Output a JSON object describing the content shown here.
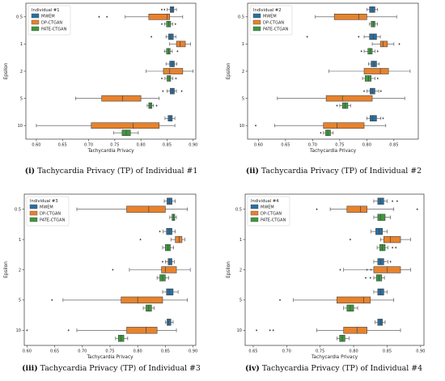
{
  "chart_data": [
    {
      "type": "box",
      "orientation": "horizontal",
      "caption_number": "(i)",
      "caption_text": "Tachycardia Privacy (TP) of Individual #1",
      "legend_title": "Individual #1",
      "xlabel": "Tachycardia Privacy",
      "ylabel": "Epsilon",
      "categories": [
        "0.5",
        "1",
        "2",
        "5",
        "10"
      ],
      "xlim": [
        0.58,
        0.905
      ],
      "xticks": [
        0.6,
        0.65,
        0.7,
        0.75,
        0.8,
        0.85,
        0.9
      ],
      "xtick_labels": [
        "0.60",
        "0.65",
        "0.70",
        "0.75",
        "0.80",
        "0.85",
        "0.90"
      ],
      "legend_position": "top-left",
      "series": [
        {
          "name": "MWEM",
          "color": "#2b6e9e",
          "boxes": [
            {
              "min": 0.85,
              "q1": 0.856,
              "median": 0.86,
              "q3": 0.863,
              "max": 0.868,
              "outliers": [
                0.84,
                0.845
              ]
            },
            {
              "min": 0.848,
              "q1": 0.853,
              "median": 0.857,
              "q3": 0.862,
              "max": 0.867,
              "outliers": [
                0.82
              ]
            },
            {
              "min": 0.848,
              "q1": 0.855,
              "median": 0.86,
              "q3": 0.864,
              "max": 0.869,
              "outliers": []
            },
            {
              "min": 0.85,
              "q1": 0.856,
              "median": 0.86,
              "q3": 0.864,
              "max": 0.868,
              "outliers": [
                0.842,
                0.878
              ]
            },
            {
              "min": 0.846,
              "q1": 0.852,
              "median": 0.856,
              "q3": 0.86,
              "max": 0.865,
              "outliers": []
            }
          ]
        },
        {
          "name": "DP-CTGAN",
          "color": "#e8822c",
          "boxes": [
            {
              "min": 0.77,
              "q1": 0.815,
              "median": 0.85,
              "q3": 0.855,
              "max": 0.88,
              "outliers": [
                0.72,
                0.735
              ]
            },
            {
              "min": 0.855,
              "q1": 0.868,
              "median": 0.875,
              "q3": 0.885,
              "max": 0.895,
              "outliers": []
            },
            {
              "min": 0.81,
              "q1": 0.843,
              "median": 0.855,
              "q3": 0.88,
              "max": 0.9,
              "outliers": []
            },
            {
              "min": 0.675,
              "q1": 0.725,
              "median": 0.765,
              "q3": 0.8,
              "max": 0.835,
              "outliers": []
            },
            {
              "min": 0.6,
              "q1": 0.705,
              "median": 0.785,
              "q3": 0.835,
              "max": 0.865,
              "outliers": []
            }
          ]
        },
        {
          "name": "PATE-CTGAN",
          "color": "#3c9a3c",
          "boxes": [
            {
              "min": 0.845,
              "q1": 0.849,
              "median": 0.853,
              "q3": 0.857,
              "max": 0.861,
              "outliers": [
                0.84,
                0.866
              ]
            },
            {
              "min": 0.845,
              "q1": 0.849,
              "median": 0.853,
              "q3": 0.856,
              "max": 0.86,
              "outliers": [
                0.87
              ]
            },
            {
              "min": 0.846,
              "q1": 0.85,
              "median": 0.854,
              "q3": 0.857,
              "max": 0.861,
              "outliers": [
                0.84,
                0.867
              ]
            },
            {
              "min": 0.812,
              "q1": 0.815,
              "median": 0.818,
              "q3": 0.821,
              "max": 0.824,
              "outliers": [
                0.83
              ]
            },
            {
              "min": 0.748,
              "q1": 0.764,
              "median": 0.772,
              "q3": 0.78,
              "max": 0.795,
              "outliers": []
            }
          ]
        }
      ]
    },
    {
      "type": "box",
      "orientation": "horizontal",
      "caption_number": "(ii)",
      "caption_text": "Tachycardia Privacy (TP) of Individual #2",
      "legend_title": "Individual #2",
      "xlabel": "Tachycardia Privacy",
      "ylabel": "Epsilon",
      "categories": [
        "0.5",
        "1",
        "2",
        "5",
        "10"
      ],
      "xlim": [
        0.58,
        0.895
      ],
      "xticks": [
        0.6,
        0.65,
        0.7,
        0.75,
        0.8,
        0.85
      ],
      "xtick_labels": [
        "0.60",
        "0.65",
        "0.70",
        "0.75",
        "0.80",
        "0.85"
      ],
      "legend_position": "top-left",
      "series": [
        {
          "name": "MWEM",
          "color": "#2b6e9e",
          "boxes": [
            {
              "min": 0.8,
              "q1": 0.805,
              "median": 0.81,
              "q3": 0.815,
              "max": 0.82,
              "outliers": []
            },
            {
              "min": 0.795,
              "q1": 0.805,
              "median": 0.812,
              "q3": 0.818,
              "max": 0.825,
              "outliers": [
                0.69,
                0.785
              ]
            },
            {
              "min": 0.803,
              "q1": 0.808,
              "median": 0.813,
              "q3": 0.818,
              "max": 0.823,
              "outliers": []
            },
            {
              "min": 0.8,
              "q1": 0.806,
              "median": 0.81,
              "q3": 0.815,
              "max": 0.822,
              "outliers": [
                0.795,
                0.826
              ]
            },
            {
              "min": 0.8,
              "q1": 0.806,
              "median": 0.811,
              "q3": 0.818,
              "max": 0.826,
              "outliers": [
                0.83
              ]
            }
          ]
        },
        {
          "name": "DP-CTGAN",
          "color": "#e8822c",
          "boxes": [
            {
              "min": 0.705,
              "q1": 0.74,
              "median": 0.785,
              "q3": 0.8,
              "max": 0.855,
              "outliers": []
            },
            {
              "min": 0.81,
              "q1": 0.825,
              "median": 0.83,
              "q3": 0.838,
              "max": 0.85,
              "outliers": [
                0.86
              ]
            },
            {
              "min": 0.73,
              "q1": 0.795,
              "median": 0.825,
              "q3": 0.84,
              "max": 0.88,
              "outliers": []
            },
            {
              "min": 0.635,
              "q1": 0.725,
              "median": 0.755,
              "q3": 0.81,
              "max": 0.87,
              "outliers": []
            },
            {
              "min": 0.63,
              "q1": 0.72,
              "median": 0.745,
              "q3": 0.795,
              "max": 0.835,
              "outliers": [
                0.595
              ]
            }
          ]
        },
        {
          "name": "PATE-CTGAN",
          "color": "#3c9a3c",
          "boxes": [
            {
              "min": 0.805,
              "q1": 0.808,
              "median": 0.812,
              "q3": 0.815,
              "max": 0.82,
              "outliers": []
            },
            {
              "min": 0.795,
              "q1": 0.802,
              "median": 0.806,
              "q3": 0.81,
              "max": 0.815,
              "outliers": [
                0.79,
                0.82
              ]
            },
            {
              "min": 0.792,
              "q1": 0.797,
              "median": 0.803,
              "q3": 0.808,
              "max": 0.815,
              "outliers": [
                0.82
              ]
            },
            {
              "min": 0.75,
              "q1": 0.755,
              "median": 0.76,
              "q3": 0.765,
              "max": 0.77,
              "outliers": [
                0.745
              ]
            },
            {
              "min": 0.72,
              "q1": 0.724,
              "median": 0.728,
              "q3": 0.733,
              "max": 0.738,
              "outliers": [
                0.715
              ]
            }
          ]
        }
      ]
    },
    {
      "type": "box",
      "orientation": "horizontal",
      "caption_number": "(iii)",
      "caption_text": "Tachycardia Privacy (TP) of Individual #3",
      "legend_title": "Individual #3",
      "xlabel": "Tachycardia Privacy",
      "ylabel": "Epsilon",
      "categories": [
        "0.5",
        "1",
        "2",
        "5",
        "10"
      ],
      "xlim": [
        0.595,
        0.905
      ],
      "xticks": [
        0.6,
        0.65,
        0.7,
        0.75,
        0.8,
        0.85,
        0.9
      ],
      "xtick_labels": [
        "0.60",
        "0.65",
        "0.70",
        "0.75",
        "0.80",
        "0.85",
        "0.90"
      ],
      "legend_position": "top-left",
      "series": [
        {
          "name": "MWEM",
          "color": "#2b6e9e",
          "boxes": [
            {
              "min": 0.848,
              "q1": 0.853,
              "median": 0.857,
              "q3": 0.862,
              "max": 0.868,
              "outliers": []
            },
            {
              "min": 0.846,
              "q1": 0.852,
              "median": 0.857,
              "q3": 0.862,
              "max": 0.868,
              "outliers": [
                0.84
              ]
            },
            {
              "min": 0.85,
              "q1": 0.855,
              "median": 0.858,
              "q3": 0.862,
              "max": 0.866,
              "outliers": [
                0.845
              ]
            },
            {
              "min": 0.845,
              "q1": 0.852,
              "median": 0.857,
              "q3": 0.864,
              "max": 0.873,
              "outliers": []
            },
            {
              "min": 0.85,
              "q1": 0.853,
              "median": 0.856,
              "q3": 0.86,
              "max": 0.864,
              "outliers": []
            }
          ]
        },
        {
          "name": "DP-CTGAN",
          "color": "#e8822c",
          "boxes": [
            {
              "min": 0.69,
              "q1": 0.78,
              "median": 0.82,
              "q3": 0.85,
              "max": 0.89,
              "outliers": []
            },
            {
              "min": 0.86,
              "q1": 0.868,
              "median": 0.875,
              "q3": 0.88,
              "max": 0.885,
              "outliers": [
                0.805
              ]
            },
            {
              "min": 0.785,
              "q1": 0.843,
              "median": 0.85,
              "q3": 0.87,
              "max": 0.895,
              "outliers": [
                0.755
              ]
            },
            {
              "min": 0.665,
              "q1": 0.77,
              "median": 0.8,
              "q3": 0.845,
              "max": 0.89,
              "outliers": [
                0.645
              ]
            },
            {
              "min": 0.69,
              "q1": 0.78,
              "median": 0.815,
              "q3": 0.835,
              "max": 0.87,
              "outliers": [
                0.6,
                0.675
              ]
            }
          ]
        },
        {
          "name": "PATE-CTGAN",
          "color": "#3c9a3c",
          "boxes": [
            {
              "min": 0.858,
              "q1": 0.862,
              "median": 0.865,
              "q3": 0.867,
              "max": 0.87,
              "outliers": []
            },
            {
              "min": 0.845,
              "q1": 0.85,
              "median": 0.855,
              "q3": 0.859,
              "max": 0.865,
              "outliers": []
            },
            {
              "min": 0.835,
              "q1": 0.84,
              "median": 0.845,
              "q3": 0.85,
              "max": 0.856,
              "outliers": []
            },
            {
              "min": 0.81,
              "q1": 0.815,
              "median": 0.82,
              "q3": 0.825,
              "max": 0.83,
              "outliers": []
            },
            {
              "min": 0.76,
              "q1": 0.765,
              "median": 0.77,
              "q3": 0.775,
              "max": 0.782,
              "outliers": []
            }
          ]
        }
      ]
    },
    {
      "type": "box",
      "orientation": "horizontal",
      "caption_number": "(iv)",
      "caption_text": "Tachycardia Privacy (TP) of Individual #4",
      "legend_title": "Individual #4",
      "xlabel": "Tachycardia Privacy",
      "ylabel": "Epsilon",
      "categories": [
        "0.5",
        "1",
        "2",
        "5",
        "10"
      ],
      "xlim": [
        0.638,
        0.905
      ],
      "xticks": [
        0.65,
        0.7,
        0.75,
        0.8,
        0.85,
        0.9
      ],
      "xtick_labels": [
        "0.65",
        "0.70",
        "0.75",
        "0.80",
        "0.85",
        "0.90"
      ],
      "legend_position": "top-left",
      "series": [
        {
          "name": "MWEM",
          "color": "#2b6e9e",
          "boxes": [
            {
              "min": 0.83,
              "q1": 0.836,
              "median": 0.84,
              "q3": 0.845,
              "max": 0.85,
              "outliers": [
                0.858,
                0.865
              ]
            },
            {
              "min": 0.826,
              "q1": 0.833,
              "median": 0.838,
              "q3": 0.843,
              "max": 0.85,
              "outliers": []
            },
            {
              "min": 0.83,
              "q1": 0.836,
              "median": 0.84,
              "q3": 0.845,
              "max": 0.851,
              "outliers": [
                0.855
              ]
            },
            {
              "min": 0.83,
              "q1": 0.836,
              "median": 0.84,
              "q3": 0.845,
              "max": 0.85,
              "outliers": []
            },
            {
              "min": 0.832,
              "q1": 0.836,
              "median": 0.84,
              "q3": 0.843,
              "max": 0.847,
              "outliers": []
            }
          ]
        },
        {
          "name": "DP-CTGAN",
          "color": "#e8822c",
          "boxes": [
            {
              "min": 0.765,
              "q1": 0.79,
              "median": 0.81,
              "q3": 0.82,
              "max": 0.86,
              "outliers": [
                0.745,
                0.895
              ]
            },
            {
              "min": 0.84,
              "q1": 0.845,
              "median": 0.855,
              "q3": 0.87,
              "max": 0.885,
              "outliers": [
                0.795
              ]
            },
            {
              "min": 0.785,
              "q1": 0.83,
              "median": 0.85,
              "q3": 0.87,
              "max": 0.885,
              "outliers": [
                0.78,
                0.82,
                0.826
              ]
            },
            {
              "min": 0.71,
              "q1": 0.775,
              "median": 0.815,
              "q3": 0.825,
              "max": 0.86,
              "outliers": [
                0.69
              ]
            },
            {
              "min": 0.745,
              "q1": 0.785,
              "median": 0.805,
              "q3": 0.82,
              "max": 0.87,
              "outliers": [
                0.655,
                0.675,
                0.68
              ]
            }
          ]
        },
        {
          "name": "PATE-CTGAN",
          "color": "#3c9a3c",
          "boxes": [
            {
              "min": 0.83,
              "q1": 0.836,
              "median": 0.84,
              "q3": 0.847,
              "max": 0.855,
              "outliers": []
            },
            {
              "min": 0.835,
              "q1": 0.839,
              "median": 0.843,
              "q3": 0.847,
              "max": 0.851,
              "outliers": [
                0.858,
                0.863
              ]
            },
            {
              "min": 0.83,
              "q1": 0.834,
              "median": 0.838,
              "q3": 0.842,
              "max": 0.846,
              "outliers": [
                0.818,
                0.825
              ]
            },
            {
              "min": 0.785,
              "q1": 0.79,
              "median": 0.795,
              "q3": 0.8,
              "max": 0.806,
              "outliers": []
            },
            {
              "min": 0.775,
              "q1": 0.779,
              "median": 0.783,
              "q3": 0.787,
              "max": 0.793,
              "outliers": []
            }
          ]
        }
      ]
    }
  ]
}
